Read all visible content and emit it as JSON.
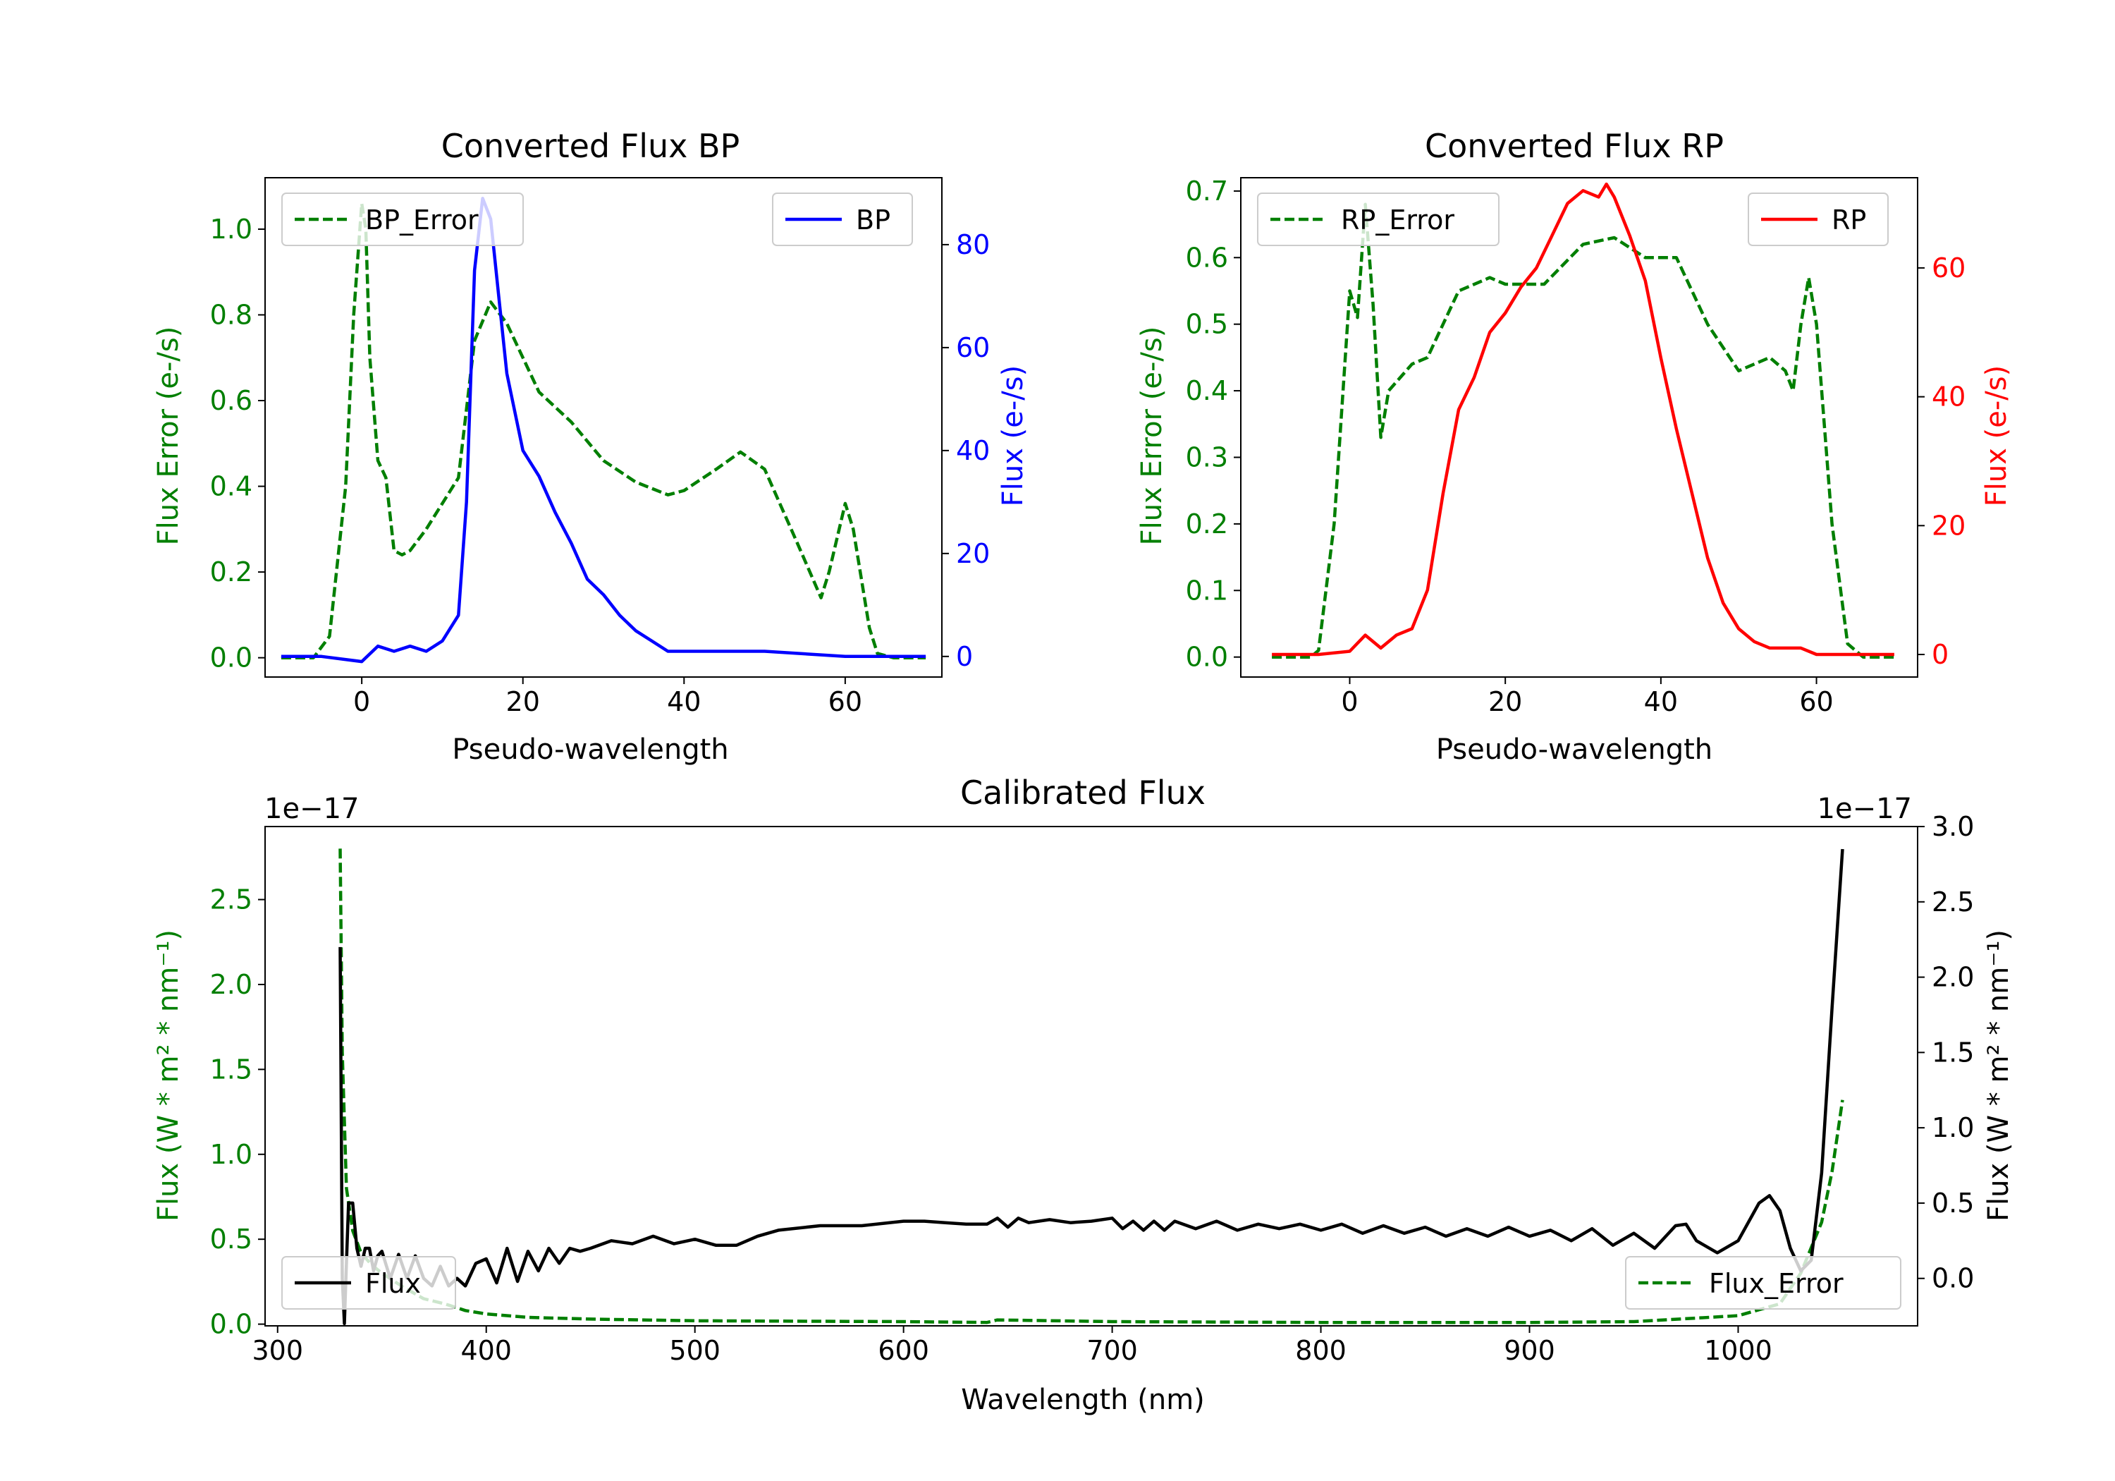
{
  "colors": {
    "error": "#007f00",
    "bp": "#0000ff",
    "rp": "#ff0000",
    "flux": "#000000",
    "axis": "#000000"
  },
  "chart_data": [
    {
      "id": "bp",
      "type": "line",
      "title": "Converted Flux BP",
      "xlabel": "Pseudo-wavelength",
      "ylabel_left": "Flux Error (e-/s)",
      "ylabel_right": "Flux (e-/s)",
      "xlim": [
        -12,
        72
      ],
      "ylim_left": [
        -0.045,
        1.12
      ],
      "ylim_right": [
        -4,
        93
      ],
      "xticks": [
        "0",
        "20",
        "40",
        "60"
      ],
      "xtick_values": [
        0,
        20,
        40,
        60
      ],
      "yticks_left": [
        "0.0",
        "0.2",
        "0.4",
        "0.6",
        "0.8",
        "1.0"
      ],
      "ytick_values_left": [
        0,
        0.2,
        0.4,
        0.6,
        0.8,
        1.0
      ],
      "yticks_right": [
        "0",
        "20",
        "40",
        "60",
        "80"
      ],
      "ytick_values_right": [
        0,
        20,
        40,
        60,
        80
      ],
      "series": [
        {
          "name": "BP_Error",
          "axis": "left",
          "style": "dashed",
          "color": "#007f00",
          "x": [
            -10,
            -6,
            -4,
            -2,
            -1,
            0,
            0.5,
            1,
            2,
            3,
            4,
            5,
            6,
            8,
            10,
            12,
            14,
            16,
            18,
            20,
            22,
            26,
            30,
            34,
            38,
            40,
            44,
            47,
            50,
            54,
            57,
            58,
            60,
            61,
            63,
            64,
            66,
            70
          ],
          "y": [
            0.0,
            0.0,
            0.05,
            0.4,
            0.8,
            1.06,
            1.0,
            0.7,
            0.46,
            0.42,
            0.25,
            0.24,
            0.25,
            0.3,
            0.36,
            0.42,
            0.74,
            0.83,
            0.78,
            0.7,
            0.62,
            0.55,
            0.46,
            0.41,
            0.38,
            0.39,
            0.44,
            0.48,
            0.44,
            0.27,
            0.14,
            0.2,
            0.36,
            0.3,
            0.07,
            0.01,
            0.0,
            0.0
          ]
        },
        {
          "name": "BP",
          "axis": "right",
          "style": "solid",
          "color": "#0000ff",
          "x": [
            -10,
            -5,
            0,
            2,
            4,
            6,
            8,
            10,
            12,
            13,
            14,
            15,
            16,
            17,
            18,
            20,
            22,
            24,
            26,
            28,
            30,
            32,
            34,
            36,
            38,
            40,
            50,
            60,
            70
          ],
          "y": [
            0,
            0,
            -1,
            2,
            1,
            2,
            1,
            3,
            8,
            30,
            75,
            89,
            85,
            70,
            55,
            40,
            35,
            28,
            22,
            15,
            12,
            8,
            5,
            3,
            1,
            1,
            1,
            0,
            0
          ]
        }
      ],
      "legend": [
        {
          "label": "BP_Error",
          "position": "upper left"
        },
        {
          "label": "BP",
          "position": "upper right"
        }
      ]
    },
    {
      "id": "rp",
      "type": "line",
      "title": "Converted Flux RP",
      "xlabel": "Pseudo-wavelength",
      "ylabel_left": "Flux Error (e-/s)",
      "ylabel_right": "Flux (e-/s)",
      "xlim": [
        -14,
        73
      ],
      "ylim_left": [
        -0.03,
        0.72
      ],
      "ylim_right": [
        -3.5,
        74
      ],
      "xticks": [
        "0",
        "20",
        "40",
        "60"
      ],
      "xtick_values": [
        0,
        20,
        40,
        60
      ],
      "yticks_left": [
        "0.0",
        "0.1",
        "0.2",
        "0.3",
        "0.4",
        "0.5",
        "0.6",
        "0.7"
      ],
      "ytick_values_left": [
        0,
        0.1,
        0.2,
        0.3,
        0.4,
        0.5,
        0.6,
        0.7
      ],
      "yticks_right": [
        "0",
        "20",
        "40",
        "60"
      ],
      "ytick_values_right": [
        0,
        20,
        40,
        60
      ],
      "series": [
        {
          "name": "RP_Error",
          "axis": "left",
          "style": "dashed",
          "color": "#007f00",
          "x": [
            -10,
            -5,
            -4,
            -2,
            0,
            1,
            2,
            3,
            4,
            5,
            8,
            10,
            12,
            14,
            18,
            20,
            25,
            30,
            34,
            38,
            42,
            46,
            50,
            54,
            56,
            57,
            58,
            59,
            60,
            62,
            64,
            66,
            70
          ],
          "y": [
            0.0,
            0.0,
            0.01,
            0.2,
            0.55,
            0.51,
            0.68,
            0.53,
            0.33,
            0.4,
            0.44,
            0.45,
            0.5,
            0.55,
            0.57,
            0.56,
            0.56,
            0.62,
            0.63,
            0.6,
            0.6,
            0.5,
            0.43,
            0.45,
            0.43,
            0.4,
            0.5,
            0.57,
            0.5,
            0.2,
            0.02,
            0.0,
            0.0
          ]
        },
        {
          "name": "RP",
          "axis": "right",
          "style": "solid",
          "color": "#ff0000",
          "x": [
            -10,
            -4,
            0,
            2,
            4,
            6,
            8,
            10,
            12,
            14,
            16,
            18,
            20,
            22,
            24,
            26,
            28,
            30,
            32,
            33,
            34,
            36,
            38,
            40,
            42,
            44,
            46,
            48,
            50,
            52,
            54,
            56,
            58,
            60,
            62,
            70
          ],
          "y": [
            0,
            0,
            0.5,
            3,
            1,
            3,
            4,
            10,
            25,
            38,
            43,
            50,
            53,
            57,
            60,
            65,
            70,
            72,
            71,
            73,
            71,
            65,
            58,
            46,
            35,
            25,
            15,
            8,
            4,
            2,
            1,
            1,
            1,
            0,
            0,
            0
          ]
        }
      ],
      "legend": [
        {
          "label": "RP_Error",
          "position": "upper left"
        },
        {
          "label": "RP",
          "position": "upper right"
        }
      ]
    },
    {
      "id": "cal",
      "type": "line",
      "title": "Calibrated Flux",
      "xlabel": "Wavelength (nm)",
      "ylabel_left": "Flux (W * m² * nm⁻¹)",
      "ylabel_right": "Flux (W * m² * nm⁻¹)",
      "offset_left": "1e−17",
      "offset_right": "1e−17",
      "xlim": [
        294,
        1086
      ],
      "ylim_left": [
        -0.01,
        2.93
      ],
      "ylim_right": [
        -0.315,
        3.0
      ],
      "xticks": [
        "300",
        "400",
        "500",
        "600",
        "700",
        "800",
        "900",
        "1000"
      ],
      "xtick_values": [
        300,
        400,
        500,
        600,
        700,
        800,
        900,
        1000
      ],
      "yticks_left": [
        "0.0",
        "0.5",
        "1.0",
        "1.5",
        "2.0",
        "2.5"
      ],
      "ytick_values_left": [
        0,
        0.5,
        1.0,
        1.5,
        2.0,
        2.5
      ],
      "yticks_right": [
        "0.0",
        "0.5",
        "1.0",
        "1.5",
        "2.0",
        "2.5",
        "3.0"
      ],
      "ytick_values_right": [
        0,
        0.5,
        1.0,
        1.5,
        2.0,
        2.5,
        3.0
      ],
      "series": [
        {
          "name": "Flux_Error",
          "axis": "left",
          "style": "dashed",
          "color": "#007f00",
          "x": [
            330,
            331,
            333,
            336,
            340,
            345,
            350,
            360,
            370,
            380,
            390,
            400,
            420,
            450,
            500,
            600,
            640,
            645,
            700,
            800,
            900,
            950,
            1000,
            1020,
            1030,
            1040,
            1045,
            1050
          ],
          "y": [
            2.8,
            1.6,
            0.8,
            0.55,
            0.42,
            0.35,
            0.3,
            0.22,
            0.15,
            0.12,
            0.08,
            0.06,
            0.04,
            0.03,
            0.02,
            0.015,
            0.01,
            0.025,
            0.015,
            0.01,
            0.01,
            0.015,
            0.05,
            0.12,
            0.3,
            0.6,
            0.9,
            1.32
          ]
        },
        {
          "name": "Flux",
          "axis": "right",
          "style": "solid",
          "color": "#000000",
          "x": [
            330,
            331,
            332,
            333,
            334,
            336,
            338,
            340,
            342,
            344,
            346,
            348,
            350,
            354,
            358,
            362,
            366,
            370,
            374,
            378,
            382,
            386,
            390,
            395,
            400,
            405,
            410,
            415,
            420,
            425,
            430,
            435,
            440,
            445,
            450,
            460,
            470,
            480,
            490,
            500,
            510,
            520,
            530,
            540,
            560,
            580,
            600,
            610,
            620,
            630,
            640,
            645,
            650,
            655,
            660,
            670,
            680,
            690,
            700,
            705,
            710,
            715,
            720,
            725,
            730,
            740,
            750,
            760,
            770,
            780,
            790,
            800,
            810,
            820,
            830,
            840,
            850,
            860,
            870,
            880,
            890,
            900,
            910,
            920,
            930,
            940,
            950,
            960,
            970,
            975,
            980,
            990,
            1000,
            1010,
            1015,
            1020,
            1025,
            1030,
            1035,
            1040,
            1045,
            1050
          ],
          "y": [
            2.2,
            0.0,
            -0.3,
            0.1,
            0.5,
            0.5,
            0.2,
            0.08,
            0.2,
            0.2,
            0.05,
            0.15,
            0.18,
            0.0,
            0.16,
            0.0,
            0.15,
            0.0,
            -0.05,
            0.08,
            -0.05,
            0.0,
            -0.05,
            0.1,
            0.13,
            -0.03,
            0.2,
            -0.02,
            0.18,
            0.05,
            0.2,
            0.1,
            0.2,
            0.18,
            0.2,
            0.25,
            0.23,
            0.28,
            0.23,
            0.26,
            0.22,
            0.22,
            0.28,
            0.32,
            0.35,
            0.35,
            0.38,
            0.38,
            0.37,
            0.36,
            0.36,
            0.4,
            0.34,
            0.4,
            0.37,
            0.39,
            0.37,
            0.38,
            0.4,
            0.33,
            0.38,
            0.32,
            0.38,
            0.32,
            0.38,
            0.33,
            0.38,
            0.32,
            0.36,
            0.33,
            0.36,
            0.32,
            0.36,
            0.3,
            0.35,
            0.3,
            0.34,
            0.28,
            0.33,
            0.28,
            0.34,
            0.28,
            0.32,
            0.25,
            0.33,
            0.22,
            0.3,
            0.2,
            0.35,
            0.36,
            0.25,
            0.17,
            0.25,
            0.5,
            0.55,
            0.45,
            0.2,
            0.05,
            0.12,
            0.7,
            1.8,
            2.85
          ]
        }
      ],
      "legend": [
        {
          "label": "Flux",
          "position": "lower left"
        },
        {
          "label": "Flux_Error",
          "position": "lower right"
        }
      ]
    }
  ]
}
